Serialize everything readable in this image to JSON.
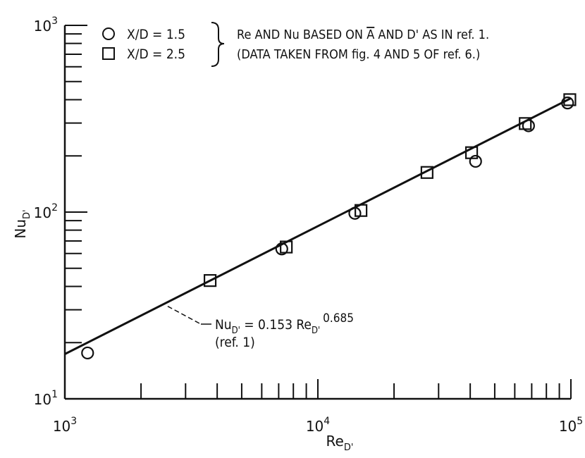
{
  "chart_data": {
    "type": "scatter",
    "x_scale": "log",
    "y_scale": "log",
    "xlim": [
      1000,
      100000
    ],
    "ylim": [
      10,
      1000
    ],
    "grid": false,
    "xlabel": {
      "main": "Re",
      "sub": "D'"
    },
    "ylabel": {
      "main": "Nu",
      "sub": "D'"
    },
    "x_ticks": [
      {
        "value": 1000,
        "base": "10",
        "exp": "3"
      },
      {
        "value": 10000,
        "base": "10",
        "exp": "4"
      },
      {
        "value": 100000,
        "base": "10",
        "exp": "5"
      }
    ],
    "y_ticks": [
      {
        "value": 10,
        "base": "10",
        "exp": "1"
      },
      {
        "value": 100,
        "base": "10",
        "exp": "2"
      },
      {
        "value": 1000,
        "base": "10",
        "exp": "3"
      }
    ],
    "legend": {
      "placement": "top-left",
      "entries": [
        {
          "marker": "circle",
          "label": "X/D = 1.5"
        },
        {
          "marker": "square",
          "label": "X/D = 2.5"
        }
      ],
      "note_lines": [
        {
          "before": "Re AND Nu BASED ON ",
          "overlined": "A",
          "after": " AND D' AS IN ref. 1."
        },
        {
          "before": "(DATA TAKEN FROM fig. 4 AND 5 OF ref. 6.)",
          "overlined": "",
          "after": ""
        }
      ]
    },
    "series": [
      {
        "marker": "circle",
        "points": [
          {
            "x": 1230,
            "y": 17.6
          },
          {
            "x": 7200,
            "y": 63.5
          },
          {
            "x": 14000,
            "y": 98.5
          },
          {
            "x": 42000,
            "y": 187
          },
          {
            "x": 68000,
            "y": 290
          },
          {
            "x": 97000,
            "y": 384
          }
        ]
      },
      {
        "marker": "square",
        "points": [
          {
            "x": 3750,
            "y": 43
          },
          {
            "x": 7500,
            "y": 65
          },
          {
            "x": 14800,
            "y": 102
          },
          {
            "x": 27000,
            "y": 163
          },
          {
            "x": 40500,
            "y": 208
          },
          {
            "x": 66000,
            "y": 298
          },
          {
            "x": 99000,
            "y": 400
          }
        ]
      }
    ],
    "fit_line": {
      "coef": 0.153,
      "exp": 0.685,
      "x_range": [
        1000,
        100000
      ]
    },
    "annotation": {
      "lhs_main": "Nu",
      "lhs_sub": "D'",
      "eq": " = 0.153 Re",
      "re_sub": "D'",
      "power": "0.685",
      "ref": "(ref. 1)",
      "anchor": {
        "x": 2550,
        "y": 30
      }
    }
  }
}
